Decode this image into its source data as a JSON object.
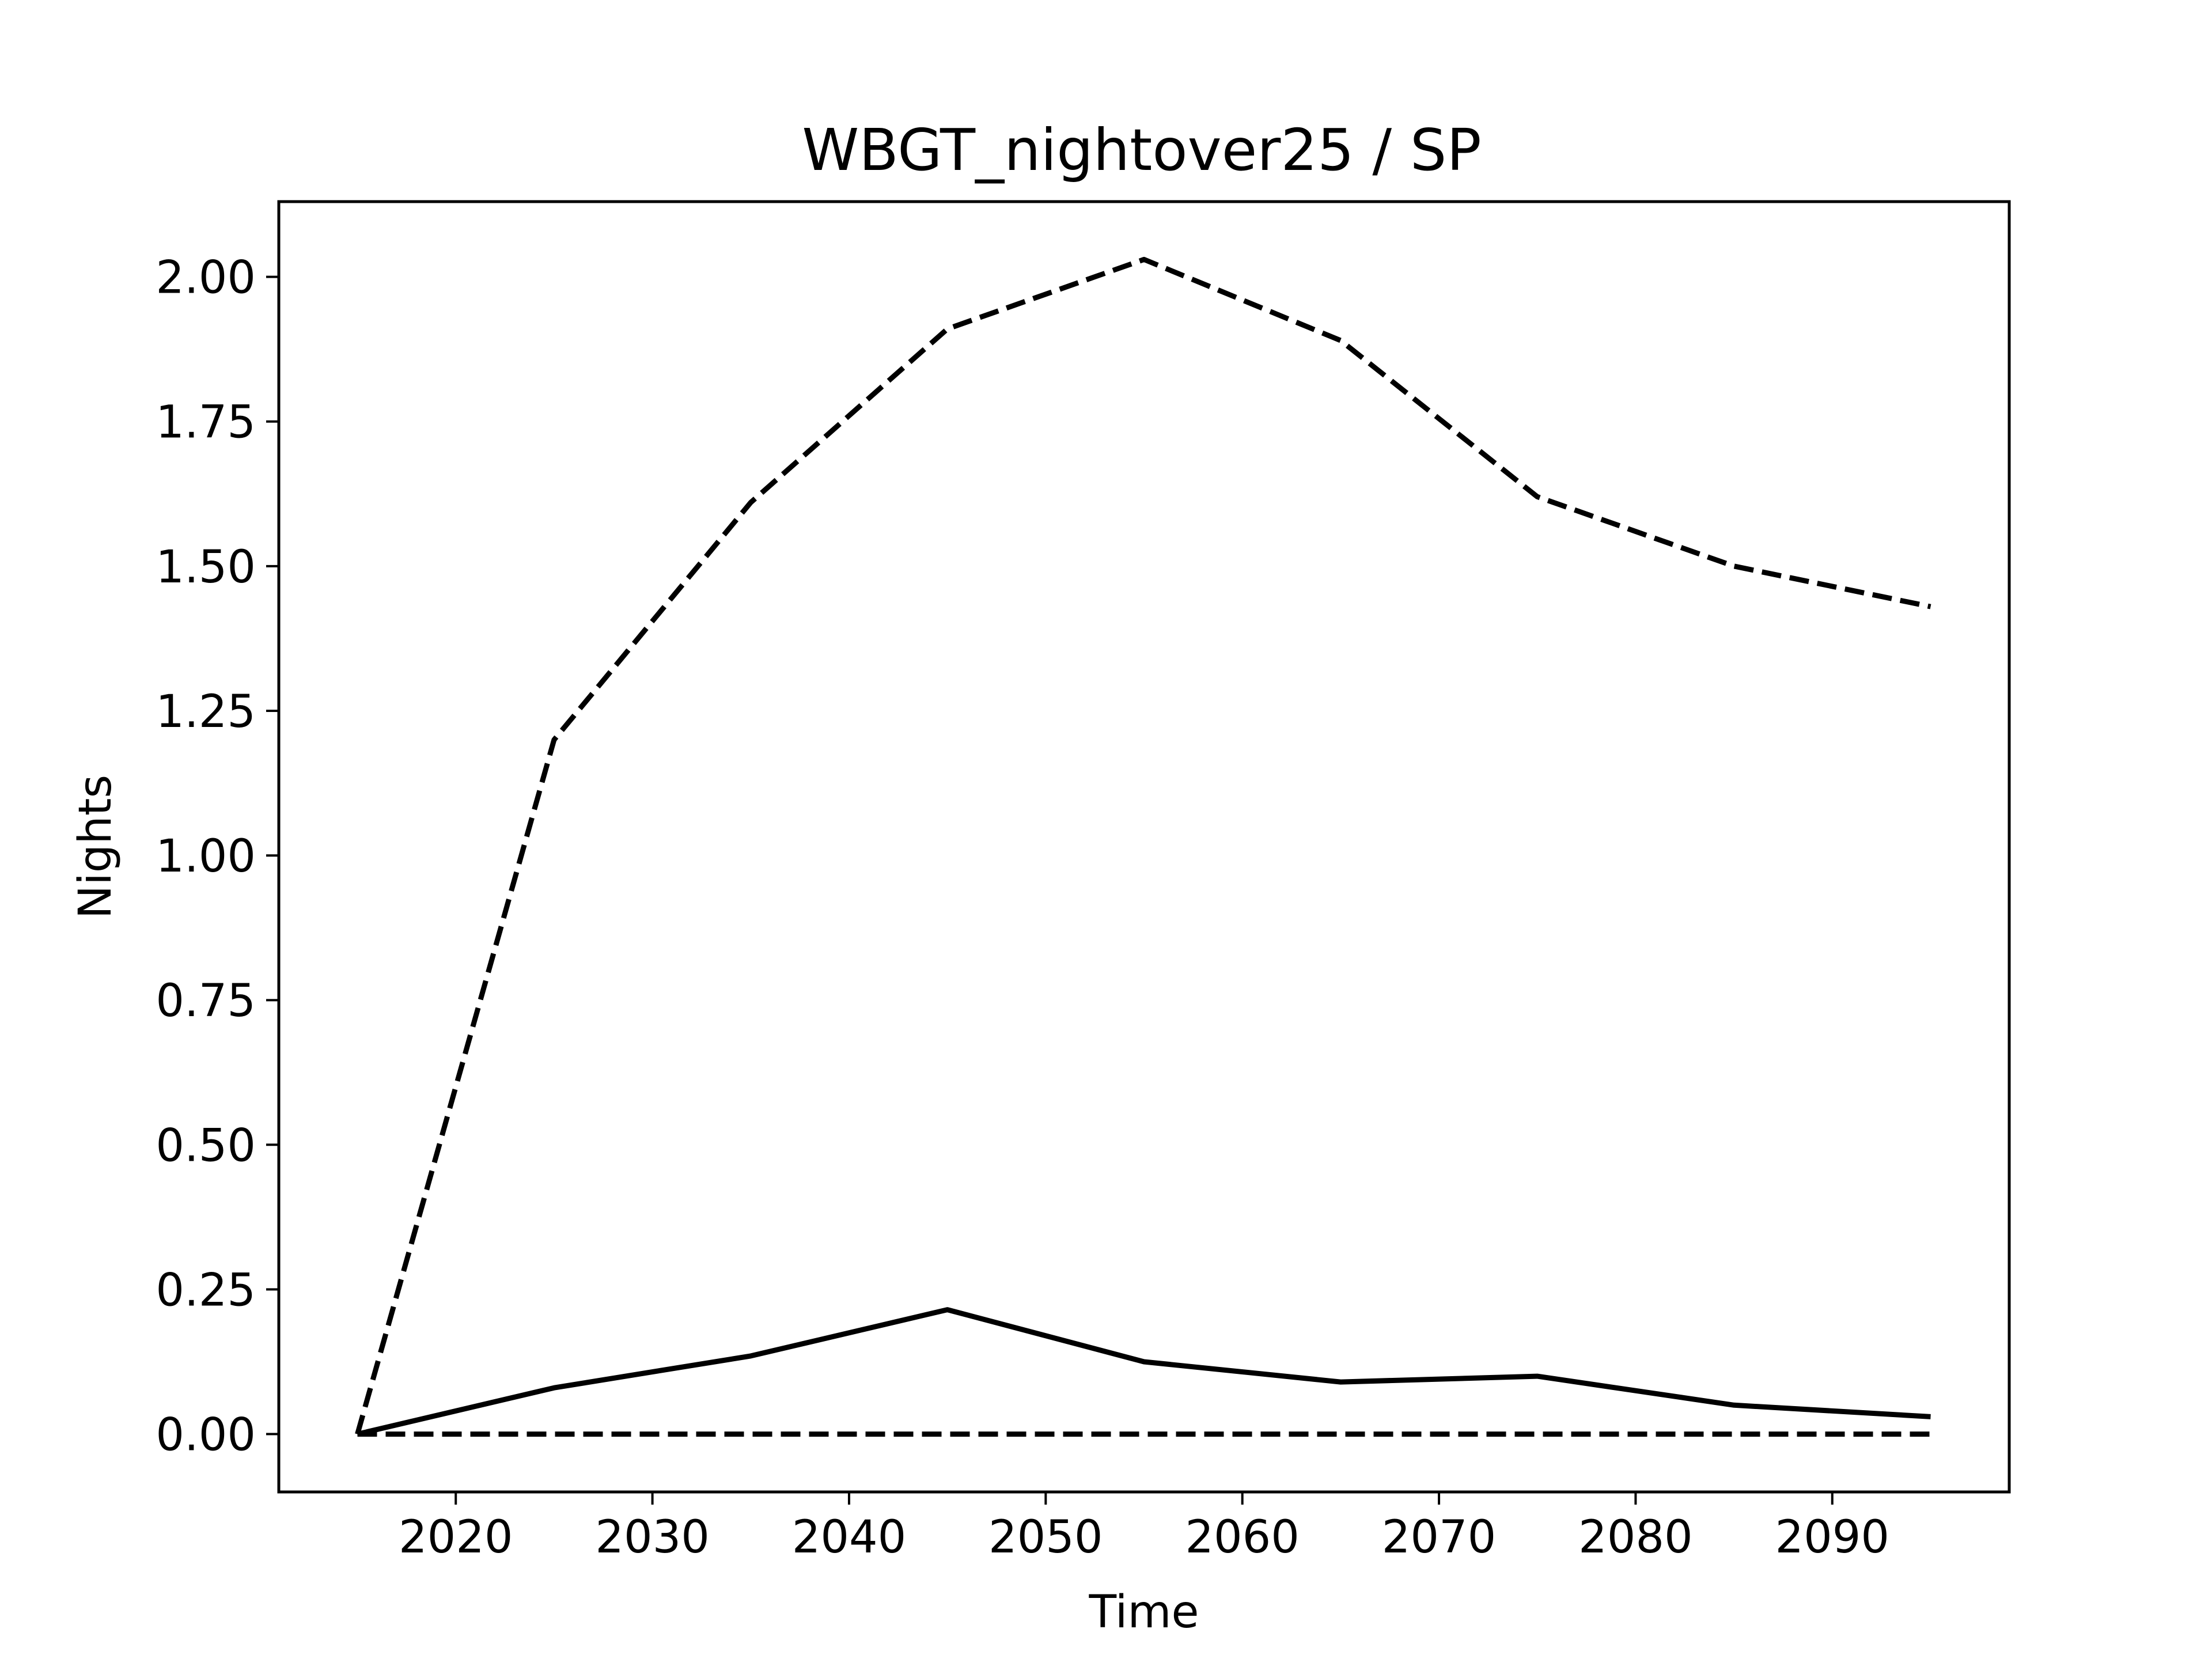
{
  "chart_data": {
    "type": "line",
    "title": "WBGT_nightover25 / SP",
    "xlabel": "Time",
    "ylabel": "Nights",
    "xlim": [
      2011,
      2099
    ],
    "ylim": [
      -0.1,
      2.13
    ],
    "x_ticks": [
      2020,
      2030,
      2040,
      2050,
      2060,
      2070,
      2080,
      2090
    ],
    "y_ticks": [
      0.0,
      0.25,
      0.5,
      0.75,
      1.0,
      1.25,
      1.5,
      1.75,
      2.0
    ],
    "grid": false,
    "line_color": "#000000",
    "x": [
      2015,
      2025,
      2035,
      2045,
      2055,
      2065,
      2075,
      2085,
      2095
    ],
    "series": [
      {
        "style": "dashed",
        "values": [
          0.0,
          1.2,
          1.61,
          1.91,
          2.03,
          1.89,
          1.62,
          1.5,
          1.43
        ]
      },
      {
        "style": "solid",
        "values": [
          0.0,
          0.08,
          0.135,
          0.215,
          0.125,
          0.09,
          0.1,
          0.05,
          0.03
        ]
      },
      {
        "style": "dashed",
        "values": [
          0.0,
          0.0,
          0.0,
          0.0,
          0.0,
          0.0,
          0.0,
          0.0,
          0.0
        ]
      }
    ]
  }
}
